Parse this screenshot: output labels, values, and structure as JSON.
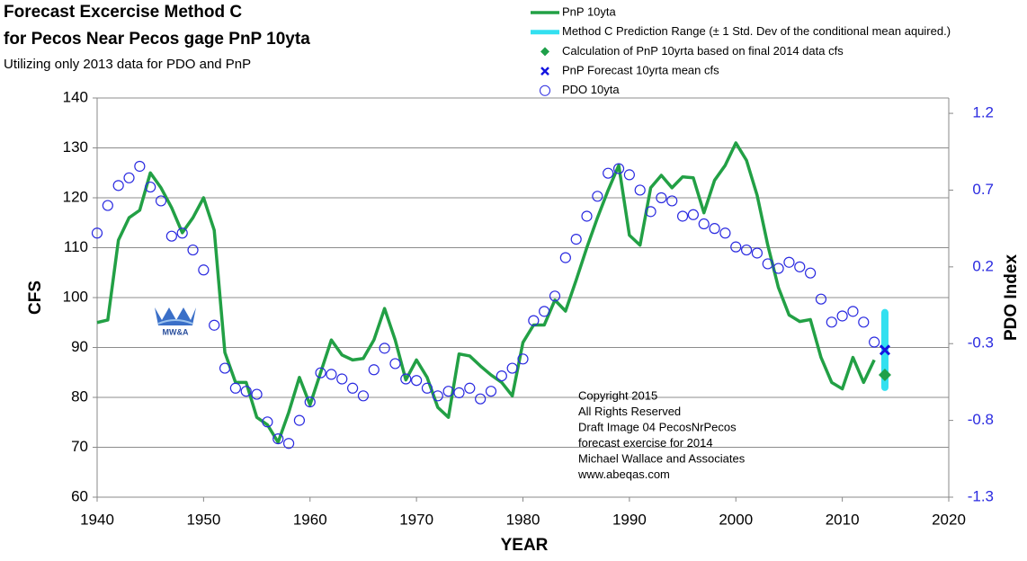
{
  "chart_data": {
    "type": "line",
    "title": [
      "Forecast Excercise  Method C",
      "for Pecos Near Pecos gage PnP 10yta"
    ],
    "subtitle": "Utilizing only 2013 data for PDO and PnP",
    "x_label": "YEAR",
    "y_label": "CFS",
    "y2_label": "PDO Index",
    "logo": "MW&A",
    "annotation": [
      "Copyright  2015",
      "All Rights Reserved",
      "Draft Image 04 PecosNrPecos",
      "forecast exercise for 2014",
      "Michael Wallace and Associates",
      "www.abeqas.com"
    ],
    "xlim": [
      1940,
      2020
    ],
    "xticks": [
      1940,
      1950,
      1960,
      1970,
      1980,
      1990,
      2000,
      2010,
      2020
    ],
    "ylim": [
      60,
      140
    ],
    "yticks": [
      60,
      70,
      80,
      90,
      100,
      110,
      120,
      130,
      140
    ],
    "y2lim": [
      -1.3,
      1.3
    ],
    "y2ticks": [
      -1.3,
      -0.8,
      -0.3,
      0.2,
      0.7,
      1.2
    ],
    "grid": true,
    "legend": "top-right",
    "x": [
      1940,
      1941,
      1942,
      1943,
      1944,
      1945,
      1946,
      1947,
      1948,
      1949,
      1950,
      1951,
      1952,
      1953,
      1954,
      1955,
      1956,
      1957,
      1958,
      1959,
      1960,
      1961,
      1962,
      1963,
      1964,
      1965,
      1966,
      1967,
      1968,
      1969,
      1970,
      1971,
      1972,
      1973,
      1974,
      1975,
      1976,
      1977,
      1978,
      1979,
      1980,
      1981,
      1982,
      1983,
      1984,
      1985,
      1986,
      1987,
      1988,
      1989,
      1990,
      1991,
      1992,
      1993,
      1994,
      1995,
      1996,
      1997,
      1998,
      1999,
      2000,
      2001,
      2002,
      2003,
      2004,
      2005,
      2006,
      2007,
      2008,
      2009,
      2010,
      2011,
      2012,
      2013
    ],
    "series": [
      {
        "name": "PnP 10yta",
        "kind": "line",
        "color": "#22a045",
        "values": [
          95,
          95.5,
          111.5,
          116,
          117.5,
          125,
          122,
          118,
          113,
          116,
          120,
          113.5,
          89,
          83,
          83,
          76,
          74.5,
          71,
          77,
          84,
          78.5,
          85,
          91.5,
          88.5,
          87.5,
          87.8,
          91.5,
          97.8,
          91.5,
          83.5,
          87.5,
          84,
          78,
          76,
          88.7,
          88.3,
          86.3,
          84.5,
          83,
          80.3,
          91,
          94.5,
          94.5,
          99.5,
          97.3,
          103.5,
          110,
          116,
          121.5,
          126.5,
          112.5,
          110.5,
          122,
          124.5,
          122,
          124.2,
          124,
          117,
          123.5,
          126.5,
          131,
          127.5,
          120.5,
          110.5,
          102,
          96.5,
          95.2,
          95.6,
          88,
          83,
          81.7,
          88,
          83,
          87.5
        ]
      },
      {
        "name": "Method C Prediction Range (± 1 Std. Dev of the conditional mean aquired.)",
        "kind": "range",
        "color": "#33e0f0",
        "x": [
          2014
        ],
        "low": [
          82
        ],
        "high": [
          97
        ]
      },
      {
        "name": "Calculation of PnP 10yrta based on final 2014  data cfs",
        "kind": "diamond",
        "color": "#1fa04a",
        "x": [
          2014
        ],
        "values": [
          84.5
        ]
      },
      {
        "name": "PnP Forecast 10yrta mean cfs",
        "kind": "cross",
        "color": "#1414e0",
        "x": [
          2014
        ],
        "values": [
          89.5
        ]
      },
      {
        "name": "PDO 10yta",
        "kind": "circle",
        "axis": "y2",
        "color": "#2a2ae0",
        "values": [
          0.42,
          0.6,
          0.73,
          0.78,
          0.855,
          0.72,
          0.63,
          0.4,
          0.42,
          0.31,
          0.18,
          -0.18,
          -0.46,
          -0.59,
          -0.61,
          -0.63,
          -0.81,
          -0.92,
          -0.95,
          -0.8,
          -0.68,
          -0.49,
          -0.5,
          -0.53,
          -0.59,
          -0.64,
          -0.47,
          -0.33,
          -0.43,
          -0.53,
          -0.54,
          -0.59,
          -0.64,
          -0.61,
          -0.62,
          -0.59,
          -0.66,
          -0.61,
          -0.51,
          -0.46,
          -0.4,
          -0.15,
          -0.09,
          0.01,
          0.26,
          0.38,
          0.53,
          0.66,
          0.81,
          0.84,
          0.8,
          0.7,
          0.56,
          0.65,
          0.63,
          0.53,
          0.54,
          0.48,
          0.45,
          0.42,
          0.33,
          0.31,
          0.29,
          0.22,
          0.19,
          0.23,
          0.2,
          0.16,
          -0.01,
          -0.16,
          -0.12,
          -0.09,
          -0.16,
          -0.29
        ]
      }
    ]
  }
}
